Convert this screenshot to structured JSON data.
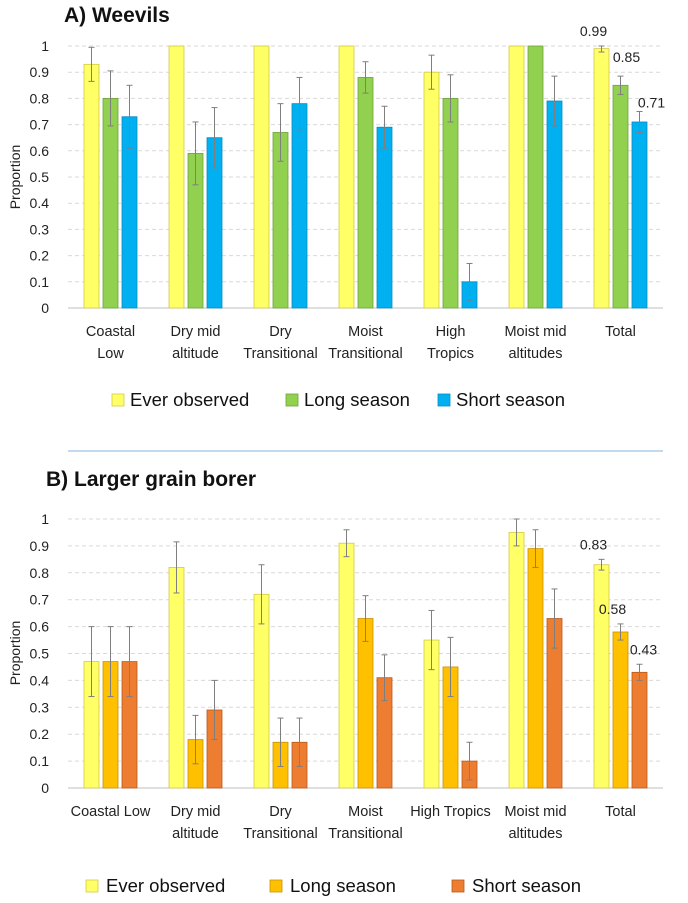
{
  "chart_data": [
    {
      "type": "bar",
      "title": "A) Weevils",
      "ylabel": "Proportion",
      "xlabel": "",
      "ylim": [
        0,
        1
      ],
      "yticks": [
        "0",
        "0.1",
        "0.2",
        "0.3",
        "0.4",
        "0.5",
        "0.6",
        "0.7",
        "0.8",
        "0.9",
        "1"
      ],
      "grid": true,
      "legend_position": "bottom",
      "categories": [
        [
          "Coastal",
          "Low"
        ],
        [
          "Dry mid",
          "altitude"
        ],
        [
          "Dry",
          "Transitional"
        ],
        [
          "Moist",
          "Transitional"
        ],
        [
          "High",
          "Tropics"
        ],
        [
          "Moist mid",
          "altitudes"
        ],
        [
          "Total",
          ""
        ]
      ],
      "series": [
        {
          "name": "Ever observed",
          "color": "#FFFF66",
          "stroke": "#D4C94A",
          "values": [
            0.93,
            1.0,
            1.0,
            1.0,
            0.9,
            1.0,
            0.99
          ],
          "errors": [
            0.065,
            0,
            0,
            0,
            0.065,
            0,
            0.013
          ]
        },
        {
          "name": "Long season",
          "color": "#92D050",
          "stroke": "#6FA43A",
          "values": [
            0.8,
            0.59,
            0.67,
            0.88,
            0.8,
            1.0,
            0.85
          ],
          "errors": [
            0.105,
            0.12,
            0.11,
            0.06,
            0.09,
            0,
            0.035
          ]
        },
        {
          "name": "Short season",
          "color": "#00B0F0",
          "stroke": "#0A8CC0",
          "values": [
            0.73,
            0.65,
            0.78,
            0.69,
            0.1,
            0.79,
            0.71
          ],
          "errors": [
            0.12,
            0.115,
            0.1,
            0.08,
            0.07,
            0.095,
            0.04
          ]
        }
      ],
      "annotations": [
        {
          "series": 0,
          "category": 6,
          "text": "0.99"
        },
        {
          "series": 1,
          "category": 6,
          "text": "0.85"
        },
        {
          "series": 2,
          "category": 6,
          "text": "0.71"
        }
      ]
    },
    {
      "type": "bar",
      "title": "B) Larger grain borer",
      "ylabel": "Proportion",
      "xlabel": "",
      "ylim": [
        0,
        1
      ],
      "yticks": [
        "0",
        "0.1",
        "0.2",
        "0.3",
        "0.4",
        "0.5",
        "0.6",
        "0.7",
        "0.8",
        "0.9",
        "1"
      ],
      "grid": true,
      "legend_position": "bottom",
      "categories": [
        [
          "Coastal Low",
          ""
        ],
        [
          "Dry mid",
          "altitude"
        ],
        [
          "Dry",
          "Transitional"
        ],
        [
          "Moist",
          "Transitional"
        ],
        [
          "High Tropics",
          ""
        ],
        [
          "Moist mid",
          "altitudes"
        ],
        [
          "Total",
          ""
        ]
      ],
      "series": [
        {
          "name": "Ever observed",
          "color": "#FFFF66",
          "stroke": "#D4C94A",
          "values": [
            0.47,
            0.82,
            0.72,
            0.91,
            0.55,
            0.95,
            0.83
          ],
          "errors": [
            0.13,
            0.095,
            0.11,
            0.05,
            0.11,
            0.05,
            0.02
          ]
        },
        {
          "name": "Long season",
          "color": "#FFC000",
          "stroke": "#C89200",
          "values": [
            0.47,
            0.18,
            0.17,
            0.63,
            0.45,
            0.89,
            0.58
          ],
          "errors": [
            0.13,
            0.09,
            0.09,
            0.085,
            0.11,
            0.07,
            0.03
          ]
        },
        {
          "name": "Short season",
          "color": "#ED7D31",
          "stroke": "#B85A1C",
          "values": [
            0.47,
            0.29,
            0.17,
            0.41,
            0.1,
            0.63,
            0.43
          ],
          "errors": [
            0.13,
            0.11,
            0.09,
            0.085,
            0.07,
            0.11,
            0.03
          ]
        }
      ],
      "annotations": [
        {
          "series": 0,
          "category": 6,
          "text": "0.83"
        },
        {
          "series": 1,
          "category": 6,
          "text": "0.58"
        },
        {
          "series": 2,
          "category": 6,
          "text": "0.43"
        }
      ]
    }
  ]
}
